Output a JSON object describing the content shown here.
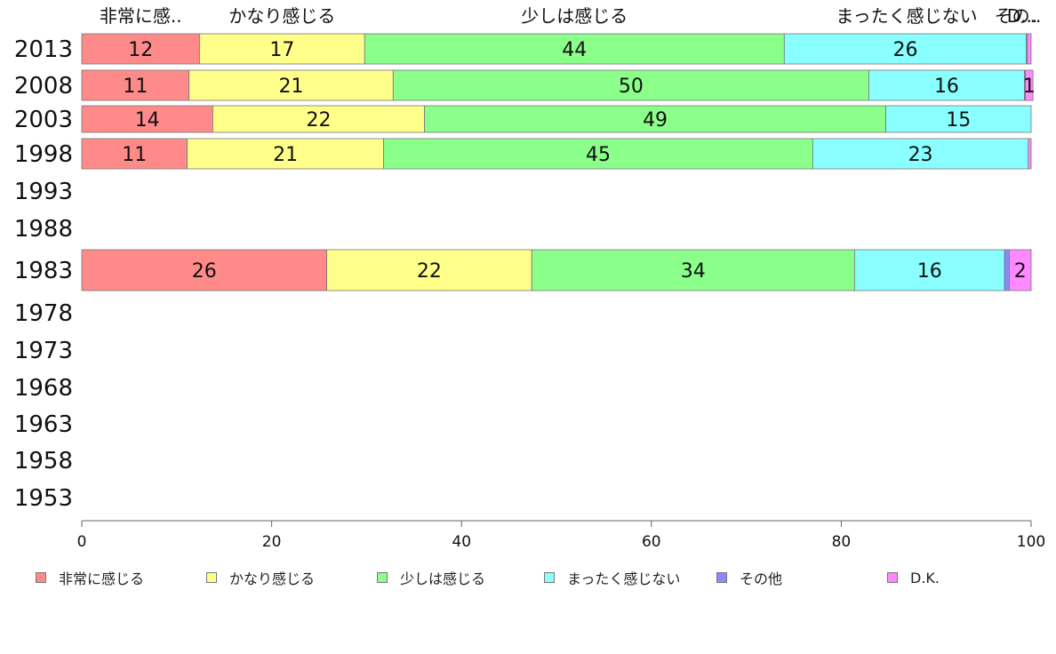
{
  "chart_data": {
    "type": "bar",
    "orientation": "horizontal",
    "stacked": true,
    "categories": [
      "2013",
      "2008",
      "2003",
      "1998",
      "1993",
      "1988",
      "1983",
      "1978",
      "1973",
      "1968",
      "1963",
      "1958",
      "1953"
    ],
    "series": [
      {
        "name": "非常に感じる",
        "top_label": "非常に感..",
        "color": "#ff8a8a",
        "values": [
          12.4,
          11.3,
          13.8,
          11.1,
          null,
          null,
          25.8,
          null,
          null,
          null,
          null,
          null,
          null
        ],
        "labels": [
          "12",
          "11",
          "14",
          "11",
          "",
          "",
          "26",
          "",
          "",
          "",
          "",
          "",
          ""
        ]
      },
      {
        "name": "かなり感じる",
        "top_label": "かなり感じる",
        "color": "#ffff8a",
        "values": [
          17.4,
          21.5,
          22.3,
          20.7,
          null,
          null,
          21.6,
          null,
          null,
          null,
          null,
          null,
          null
        ],
        "labels": [
          "17",
          "21",
          "22",
          "21",
          "",
          "",
          "22",
          "",
          "",
          "",
          "",
          "",
          ""
        ]
      },
      {
        "name": "少しは感じる",
        "top_label": "少しは感じる",
        "color": "#8aff8a",
        "values": [
          44.2,
          50.1,
          48.6,
          45.2,
          null,
          null,
          34.0,
          null,
          null,
          null,
          null,
          null,
          null
        ],
        "labels": [
          "44",
          "50",
          "49",
          "45",
          "",
          "",
          "34",
          "",
          "",
          "",
          "",
          "",
          ""
        ]
      },
      {
        "name": "まったく感じない",
        "top_label": "まったく感じない",
        "color": "#8affff",
        "values": [
          25.5,
          16.4,
          15.3,
          22.7,
          null,
          null,
          15.8,
          null,
          null,
          null,
          null,
          null,
          null
        ],
        "labels": [
          "26",
          "16",
          "15",
          "23",
          "",
          "",
          "16",
          "",
          "",
          "",
          "",
          "",
          ""
        ]
      },
      {
        "name": "その他",
        "top_label": "その..",
        "color": "#8a8aff",
        "values": [
          0.1,
          0.1,
          0.0,
          0.0,
          null,
          null,
          0.5,
          null,
          null,
          null,
          null,
          null,
          null
        ],
        "labels": [
          "",
          "",
          "",
          "",
          "",
          "",
          "",
          "",
          "",
          "",
          "",
          "",
          ""
        ]
      },
      {
        "name": "D.K.",
        "top_label": "D...",
        "color": "#ff8aff",
        "values": [
          0.4,
          0.8,
          0.0,
          0.3,
          null,
          null,
          2.3,
          null,
          null,
          null,
          null,
          null,
          null
        ],
        "labels": [
          "",
          "1",
          "",
          "",
          "",
          "",
          "2",
          "",
          "",
          "",
          "",
          "",
          ""
        ]
      }
    ],
    "xlim": [
      0,
      100
    ],
    "xticks": [
      "0",
      "20",
      "40",
      "60",
      "80",
      "100"
    ],
    "title": "",
    "xlabel": "",
    "ylabel": "",
    "legend_position": "bottom",
    "grid": false
  }
}
